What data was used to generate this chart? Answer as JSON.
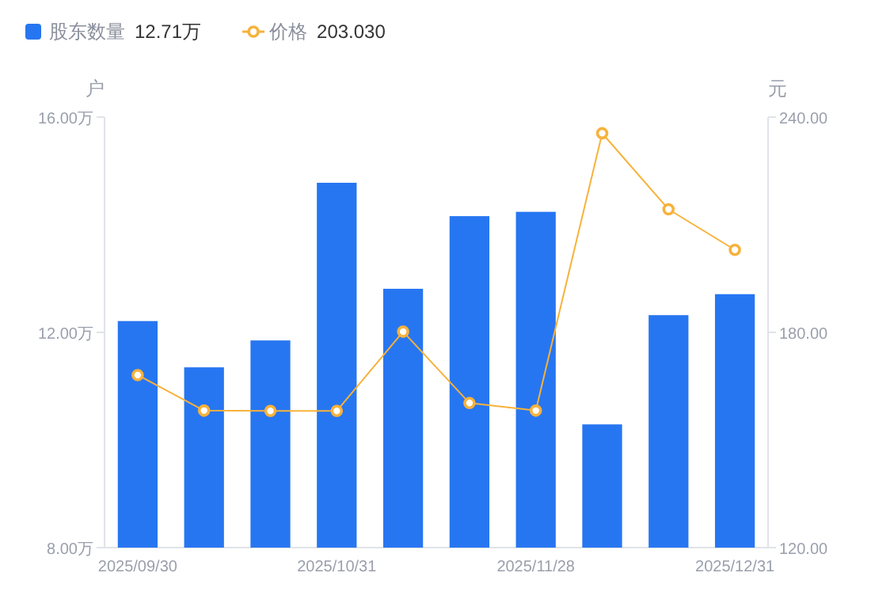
{
  "chart_data": {
    "type": "bar",
    "categories": [
      "2025/09/30",
      null,
      null,
      "2025/10/31",
      null,
      null,
      "2025/11/28",
      null,
      null,
      "2025/12/31"
    ],
    "series": [
      {
        "name": "股东数量",
        "color": "#2776f1",
        "values": [
          12.21,
          11.35,
          11.85,
          14.78,
          12.81,
          14.16,
          14.24,
          10.29,
          12.32,
          12.71
        ]
      },
      {
        "name": "价格",
        "type": "line",
        "axis": "y2",
        "color": "#f7b23b",
        "values": [
          168.1,
          158.2,
          158.1,
          158.1,
          180.2,
          160.3,
          158.2,
          235.5,
          214.3,
          203.0
        ]
      }
    ],
    "ylabel": "户",
    "y2label": "元",
    "ylim": [
      8,
      16
    ],
    "yticks": [
      {
        "value": 8,
        "label": "8.00万"
      },
      {
        "value": 12,
        "label": "12.00万"
      },
      {
        "value": 16,
        "label": "16.00万"
      }
    ],
    "y2lim": [
      120,
      240
    ],
    "y2ticks": [
      {
        "value": 120,
        "label": "120.00"
      },
      {
        "value": 180,
        "label": "180.00"
      },
      {
        "value": 240,
        "label": "240.00"
      }
    ],
    "marker": "circle",
    "legend": "top left",
    "annotations": [
      "12.71万",
      "203.030"
    ]
  }
}
